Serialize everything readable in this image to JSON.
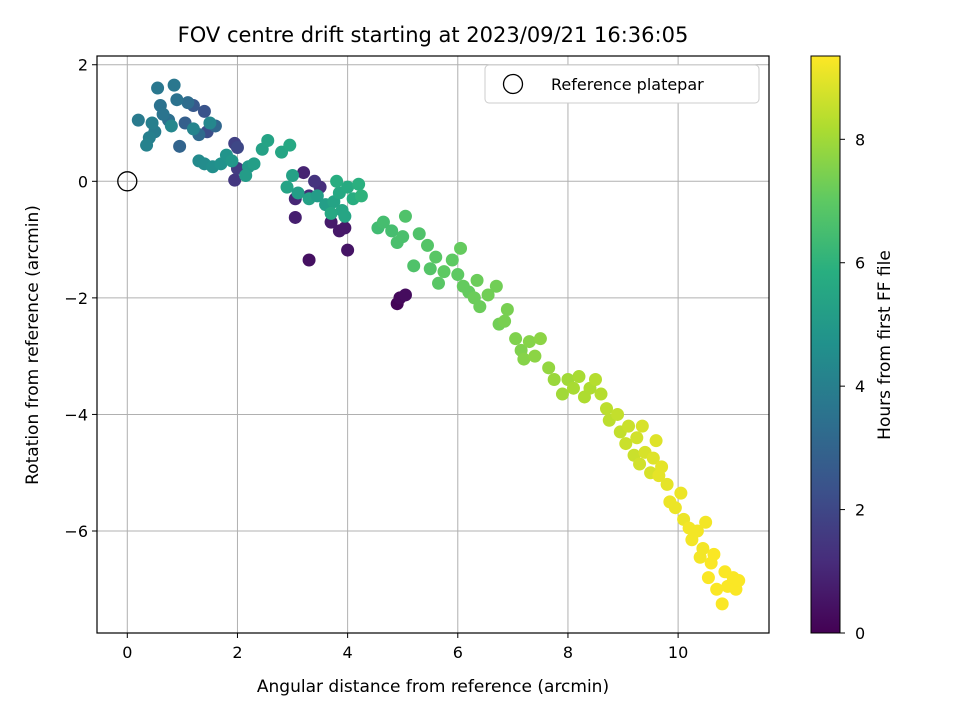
{
  "chart_data": {
    "type": "scatter",
    "title": "FOV centre drift starting at 2023/09/21 16:36:05",
    "xlabel": "Angular distance from reference (arcmin)",
    "ylabel": "Rotation from reference (arcmin)",
    "xlim": [
      -0.55,
      11.65
    ],
    "ylim": [
      -7.75,
      2.15
    ],
    "xticks": [
      0,
      2,
      4,
      6,
      8,
      10
    ],
    "yticks": [
      2,
      0,
      -2,
      -4,
      -6
    ],
    "xtick_labels": [
      "0",
      "2",
      "4",
      "6",
      "8",
      "10"
    ],
    "ytick_labels": [
      "2",
      "0",
      "−2",
      "−4",
      "−6"
    ],
    "grid": true,
    "legend": {
      "position": "top-right",
      "entries": [
        {
          "label": "Reference platepar",
          "marker": "open-circle"
        }
      ]
    },
    "reference_point": {
      "x": 0,
      "y": 0
    },
    "colorbar": {
      "label": "Hours from first FF file",
      "colormap": "viridis",
      "range": [
        0,
        9.35
      ],
      "ticks": [
        0,
        2,
        4,
        6,
        8
      ],
      "tick_labels": [
        "0",
        "2",
        "4",
        "6",
        "8"
      ]
    },
    "points": [
      {
        "x": 4.9,
        "y": -2.1,
        "t": 0.1
      },
      {
        "x": 4.95,
        "y": -2.0,
        "t": 0.2
      },
      {
        "x": 5.05,
        "y": -1.95,
        "t": 0.3
      },
      {
        "x": 3.3,
        "y": -1.35,
        "t": 0.4
      },
      {
        "x": 4.0,
        "y": -1.18,
        "t": 0.5
      },
      {
        "x": 3.85,
        "y": -0.85,
        "t": 0.6
      },
      {
        "x": 3.95,
        "y": -0.8,
        "t": 0.6
      },
      {
        "x": 3.7,
        "y": -0.7,
        "t": 0.7
      },
      {
        "x": 3.05,
        "y": -0.62,
        "t": 0.8
      },
      {
        "x": 3.2,
        "y": 0.15,
        "t": 0.9
      },
      {
        "x": 3.05,
        "y": -0.3,
        "t": 1.0
      },
      {
        "x": 3.3,
        "y": -0.25,
        "t": 1.1
      },
      {
        "x": 3.5,
        "y": -0.1,
        "t": 1.2
      },
      {
        "x": 3.4,
        "y": 0.0,
        "t": 1.4
      },
      {
        "x": 1.95,
        "y": 0.02,
        "t": 1.5
      },
      {
        "x": 2.0,
        "y": 0.22,
        "t": 1.6
      },
      {
        "x": 1.95,
        "y": 0.65,
        "t": 1.8
      },
      {
        "x": 2.0,
        "y": 0.58,
        "t": 2.0
      },
      {
        "x": 1.45,
        "y": 0.85,
        "t": 2.2
      },
      {
        "x": 1.4,
        "y": 1.2,
        "t": 2.4
      },
      {
        "x": 1.2,
        "y": 1.3,
        "t": 2.6
      },
      {
        "x": 1.05,
        "y": 1.0,
        "t": 2.8
      },
      {
        "x": 0.95,
        "y": 0.6,
        "t": 3.0
      },
      {
        "x": 1.6,
        "y": 0.95,
        "t": 3.1
      },
      {
        "x": 1.3,
        "y": 0.8,
        "t": 3.2
      },
      {
        "x": 1.1,
        "y": 1.35,
        "t": 3.3
      },
      {
        "x": 0.75,
        "y": 1.05,
        "t": 3.4
      },
      {
        "x": 0.9,
        "y": 1.4,
        "t": 3.5
      },
      {
        "x": 0.6,
        "y": 1.3,
        "t": 3.5
      },
      {
        "x": 0.65,
        "y": 1.15,
        "t": 3.6
      },
      {
        "x": 0.55,
        "y": 1.6,
        "t": 3.7
      },
      {
        "x": 0.85,
        "y": 1.65,
        "t": 3.7
      },
      {
        "x": 0.2,
        "y": 1.05,
        "t": 3.8
      },
      {
        "x": 0.5,
        "y": 0.85,
        "t": 3.9
      },
      {
        "x": 0.4,
        "y": 0.75,
        "t": 4.0
      },
      {
        "x": 0.45,
        "y": 1.0,
        "t": 4.0
      },
      {
        "x": 0.35,
        "y": 0.62,
        "t": 4.1
      },
      {
        "x": 1.2,
        "y": 0.9,
        "t": 4.2
      },
      {
        "x": 0.8,
        "y": 0.95,
        "t": 4.3
      },
      {
        "x": 1.5,
        "y": 1.0,
        "t": 4.3
      },
      {
        "x": 1.3,
        "y": 0.35,
        "t": 4.4
      },
      {
        "x": 1.4,
        "y": 0.3,
        "t": 4.5
      },
      {
        "x": 1.55,
        "y": 0.25,
        "t": 4.6
      },
      {
        "x": 1.7,
        "y": 0.3,
        "t": 4.7
      },
      {
        "x": 1.8,
        "y": 0.45,
        "t": 4.8
      },
      {
        "x": 1.9,
        "y": 0.35,
        "t": 4.9
      },
      {
        "x": 2.2,
        "y": 0.25,
        "t": 5.0
      },
      {
        "x": 2.15,
        "y": 0.1,
        "t": 5.1
      },
      {
        "x": 2.3,
        "y": 0.3,
        "t": 5.2
      },
      {
        "x": 2.45,
        "y": 0.55,
        "t": 5.3
      },
      {
        "x": 2.55,
        "y": 0.7,
        "t": 5.4
      },
      {
        "x": 2.8,
        "y": 0.5,
        "t": 5.5
      },
      {
        "x": 2.95,
        "y": 0.62,
        "t": 5.6
      },
      {
        "x": 3.0,
        "y": 0.1,
        "t": 5.3
      },
      {
        "x": 2.9,
        "y": -0.1,
        "t": 5.4
      },
      {
        "x": 3.1,
        "y": -0.2,
        "t": 5.2
      },
      {
        "x": 3.3,
        "y": -0.3,
        "t": 5.3
      },
      {
        "x": 3.45,
        "y": -0.25,
        "t": 5.1
      },
      {
        "x": 3.6,
        "y": -0.4,
        "t": 5.2
      },
      {
        "x": 3.75,
        "y": -0.35,
        "t": 5.4
      },
      {
        "x": 3.9,
        "y": -0.5,
        "t": 5.5
      },
      {
        "x": 3.85,
        "y": -0.2,
        "t": 5.6
      },
      {
        "x": 4.0,
        "y": -0.1,
        "t": 5.7
      },
      {
        "x": 4.1,
        "y": -0.3,
        "t": 5.8
      },
      {
        "x": 4.2,
        "y": -0.05,
        "t": 5.9
      },
      {
        "x": 4.25,
        "y": -0.25,
        "t": 6.0
      },
      {
        "x": 3.8,
        "y": 0.0,
        "t": 5.8
      },
      {
        "x": 3.7,
        "y": -0.55,
        "t": 5.6
      },
      {
        "x": 3.95,
        "y": -0.6,
        "t": 5.5
      },
      {
        "x": 4.55,
        "y": -0.8,
        "t": 6.4
      },
      {
        "x": 4.65,
        "y": -0.7,
        "t": 6.5
      },
      {
        "x": 4.8,
        "y": -0.85,
        "t": 6.5
      },
      {
        "x": 4.9,
        "y": -1.05,
        "t": 6.6
      },
      {
        "x": 5.0,
        "y": -0.95,
        "t": 6.6
      },
      {
        "x": 5.05,
        "y": -0.6,
        "t": 6.7
      },
      {
        "x": 5.2,
        "y": -1.45,
        "t": 6.7
      },
      {
        "x": 5.3,
        "y": -0.9,
        "t": 6.7
      },
      {
        "x": 5.45,
        "y": -1.1,
        "t": 6.8
      },
      {
        "x": 5.5,
        "y": -1.5,
        "t": 6.8
      },
      {
        "x": 5.6,
        "y": -1.3,
        "t": 6.9
      },
      {
        "x": 5.65,
        "y": -1.75,
        "t": 6.9
      },
      {
        "x": 5.75,
        "y": -1.55,
        "t": 7.0
      },
      {
        "x": 5.9,
        "y": -1.35,
        "t": 7.0
      },
      {
        "x": 6.0,
        "y": -1.6,
        "t": 7.0
      },
      {
        "x": 6.05,
        "y": -1.15,
        "t": 7.1
      },
      {
        "x": 6.1,
        "y": -1.8,
        "t": 7.1
      },
      {
        "x": 6.2,
        "y": -1.9,
        "t": 7.1
      },
      {
        "x": 6.3,
        "y": -2.0,
        "t": 7.2
      },
      {
        "x": 6.35,
        "y": -1.7,
        "t": 7.2
      },
      {
        "x": 6.4,
        "y": -2.15,
        "t": 7.2
      },
      {
        "x": 6.55,
        "y": -1.95,
        "t": 7.3
      },
      {
        "x": 6.7,
        "y": -1.8,
        "t": 7.3
      },
      {
        "x": 6.75,
        "y": -2.45,
        "t": 7.3
      },
      {
        "x": 6.85,
        "y": -2.4,
        "t": 7.4
      },
      {
        "x": 6.9,
        "y": -2.2,
        "t": 7.4
      },
      {
        "x": 7.05,
        "y": -2.7,
        "t": 7.5
      },
      {
        "x": 7.15,
        "y": -2.9,
        "t": 7.5
      },
      {
        "x": 7.2,
        "y": -3.05,
        "t": 7.6
      },
      {
        "x": 7.3,
        "y": -2.75,
        "t": 7.6
      },
      {
        "x": 7.4,
        "y": -3.0,
        "t": 7.7
      },
      {
        "x": 7.5,
        "y": -2.7,
        "t": 7.7
      },
      {
        "x": 7.65,
        "y": -3.2,
        "t": 7.8
      },
      {
        "x": 7.75,
        "y": -3.4,
        "t": 7.9
      },
      {
        "x": 7.9,
        "y": -3.65,
        "t": 8.0
      },
      {
        "x": 8.0,
        "y": -3.4,
        "t": 8.0
      },
      {
        "x": 8.1,
        "y": -3.55,
        "t": 8.1
      },
      {
        "x": 8.2,
        "y": -3.35,
        "t": 8.1
      },
      {
        "x": 8.3,
        "y": -3.7,
        "t": 8.2
      },
      {
        "x": 8.4,
        "y": -3.55,
        "t": 8.2
      },
      {
        "x": 8.5,
        "y": -3.4,
        "t": 8.3
      },
      {
        "x": 8.6,
        "y": -3.65,
        "t": 8.3
      },
      {
        "x": 8.7,
        "y": -3.9,
        "t": 8.4
      },
      {
        "x": 8.75,
        "y": -4.1,
        "t": 8.4
      },
      {
        "x": 8.9,
        "y": -4.0,
        "t": 8.5
      },
      {
        "x": 8.95,
        "y": -4.3,
        "t": 8.5
      },
      {
        "x": 9.05,
        "y": -4.5,
        "t": 8.6
      },
      {
        "x": 9.1,
        "y": -4.2,
        "t": 8.6
      },
      {
        "x": 9.2,
        "y": -4.7,
        "t": 8.6
      },
      {
        "x": 9.25,
        "y": -4.4,
        "t": 8.7
      },
      {
        "x": 9.3,
        "y": -4.85,
        "t": 8.7
      },
      {
        "x": 9.35,
        "y": -4.2,
        "t": 8.8
      },
      {
        "x": 9.4,
        "y": -4.65,
        "t": 8.8
      },
      {
        "x": 9.5,
        "y": -5.0,
        "t": 8.8
      },
      {
        "x": 9.55,
        "y": -4.75,
        "t": 8.9
      },
      {
        "x": 9.6,
        "y": -4.45,
        "t": 8.9
      },
      {
        "x": 9.65,
        "y": -5.05,
        "t": 9.0
      },
      {
        "x": 9.7,
        "y": -4.9,
        "t": 9.0
      },
      {
        "x": 9.8,
        "y": -5.2,
        "t": 9.0
      },
      {
        "x": 9.85,
        "y": -5.5,
        "t": 9.1
      },
      {
        "x": 9.95,
        "y": -5.6,
        "t": 9.1
      },
      {
        "x": 10.05,
        "y": -5.35,
        "t": 9.1
      },
      {
        "x": 10.1,
        "y": -5.8,
        "t": 9.1
      },
      {
        "x": 10.2,
        "y": -5.95,
        "t": 9.2
      },
      {
        "x": 10.25,
        "y": -6.15,
        "t": 9.2
      },
      {
        "x": 10.35,
        "y": -6.0,
        "t": 9.2
      },
      {
        "x": 10.4,
        "y": -6.45,
        "t": 9.2
      },
      {
        "x": 10.45,
        "y": -6.3,
        "t": 9.2
      },
      {
        "x": 10.5,
        "y": -5.85,
        "t": 9.2
      },
      {
        "x": 10.55,
        "y": -6.8,
        "t": 9.3
      },
      {
        "x": 10.6,
        "y": -6.55,
        "t": 9.3
      },
      {
        "x": 10.65,
        "y": -6.4,
        "t": 9.3
      },
      {
        "x": 10.7,
        "y": -7.0,
        "t": 9.3
      },
      {
        "x": 10.8,
        "y": -7.25,
        "t": 9.3
      },
      {
        "x": 10.85,
        "y": -6.7,
        "t": 9.3
      },
      {
        "x": 10.9,
        "y": -6.95,
        "t": 9.3
      },
      {
        "x": 11.0,
        "y": -6.8,
        "t": 9.3
      },
      {
        "x": 11.05,
        "y": -7.0,
        "t": 9.3
      },
      {
        "x": 11.1,
        "y": -6.85,
        "t": 9.3
      }
    ]
  }
}
